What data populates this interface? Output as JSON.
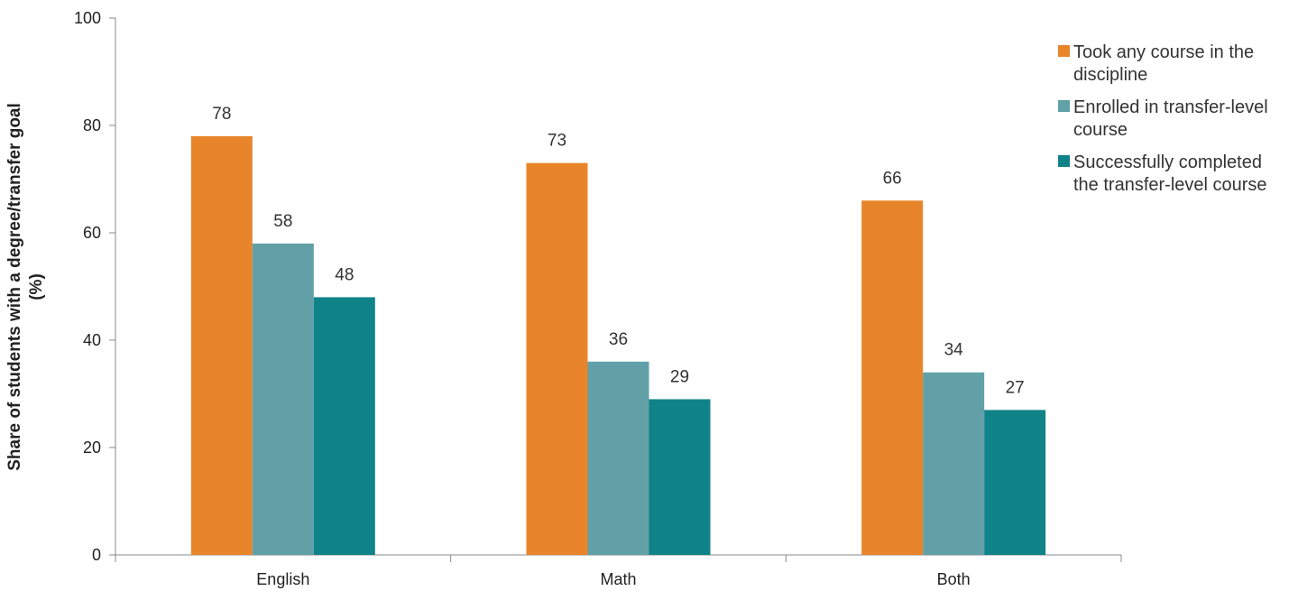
{
  "chart_data": {
    "type": "bar",
    "title": "",
    "xlabel": "",
    "ylabel": [
      "Share of students with a degree/transfer goal",
      "(%)"
    ],
    "ylim": [
      0,
      100
    ],
    "yticks": [
      0,
      20,
      40,
      60,
      80,
      100
    ],
    "grid": false,
    "legend_position": "top-right",
    "categories": [
      "English",
      "Math",
      "Both"
    ],
    "series": [
      {
        "name": [
          "Took any course in the",
          "discipline"
        ],
        "color": "#e8852a",
        "values": [
          78,
          73,
          66
        ]
      },
      {
        "name": [
          "Enrolled in transfer-level",
          "course"
        ],
        "color": "#62a0a8",
        "values": [
          58,
          36,
          34
        ]
      },
      {
        "name": [
          "Successfully completed",
          "the transfer-level course"
        ],
        "color": "#108389",
        "values": [
          48,
          29,
          27
        ]
      }
    ]
  }
}
